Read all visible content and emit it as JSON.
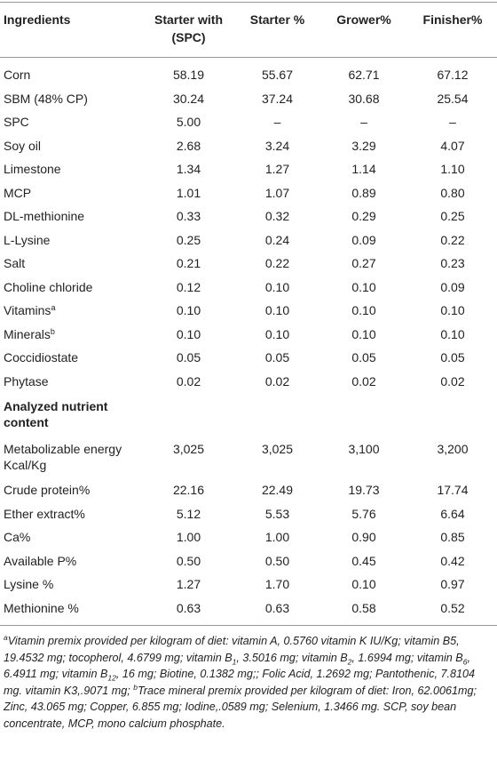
{
  "table": {
    "header": [
      "Ingredients",
      "Starter with (SPC)",
      "Starter %",
      "Grower%",
      "Finisher%"
    ],
    "rows": [
      {
        "cells": [
          "Corn",
          "58.19",
          "55.67",
          "62.71",
          "67.12"
        ]
      },
      {
        "cells": [
          "SBM (48% CP)",
          "30.24",
          "37.24",
          "30.68",
          "25.54"
        ]
      },
      {
        "cells": [
          "SPC",
          "5.00",
          "–",
          "–",
          "–"
        ]
      },
      {
        "cells": [
          "Soy oil",
          "2.68",
          "3.24",
          "3.29",
          "4.07"
        ]
      },
      {
        "cells": [
          "Limestone",
          "1.34",
          "1.27",
          "1.14",
          "1.10"
        ]
      },
      {
        "cells": [
          "MCP",
          "1.01",
          "1.07",
          "0.89",
          "0.80"
        ]
      },
      {
        "cells": [
          "DL-methionine",
          "0.33",
          "0.32",
          "0.29",
          "0.25"
        ]
      },
      {
        "cells": [
          "L-Lysine",
          "0.25",
          "0.24",
          "0.09",
          "0.22"
        ]
      },
      {
        "cells": [
          "Salt",
          "0.21",
          "0.22",
          "0.27",
          "0.23"
        ]
      },
      {
        "cells": [
          "Choline chloride",
          "0.12",
          "0.10",
          "0.10",
          "0.09"
        ]
      },
      {
        "cells": [
          "Vitamins",
          "0.10",
          "0.10",
          "0.10",
          "0.10"
        ],
        "note": "a"
      },
      {
        "cells": [
          "Minerals",
          "0.10",
          "0.10",
          "0.10",
          "0.10"
        ],
        "note": "b"
      },
      {
        "cells": [
          "Coccidiostate",
          "0.05",
          "0.05",
          "0.05",
          "0.05"
        ]
      },
      {
        "cells": [
          "Phytase",
          "0.02",
          "0.02",
          "0.02",
          "0.02"
        ]
      }
    ],
    "section": "Analyzed nutrient content",
    "section_rows": [
      [
        "Metabolizable energy Kcal/Kg",
        "3,025",
        "3,025",
        "3,100",
        "3,200"
      ],
      [
        "Crude protein%",
        "22.16",
        "22.49",
        "19.73",
        "17.74"
      ],
      [
        "Ether extract%",
        "5.12",
        "5.53",
        "5.76",
        "6.64"
      ],
      [
        "Ca%",
        "1.00",
        "1.00",
        "0.90",
        "0.85"
      ],
      [
        "Available P%",
        "0.50",
        "0.50",
        "0.45",
        "0.42"
      ],
      [
        "Lysine %",
        "1.27",
        "1.70",
        "0.10",
        "0.97"
      ],
      [
        "Methionine %",
        "0.63",
        "0.63",
        "0.58",
        "0.52"
      ]
    ]
  },
  "footnote": [
    "a",
    "Vitamin premix provided per kilogram of diet: vitamin A, 0.5760 vitamin K IU/Kg; vitamin B5, 19.4532 mg; tocopherol, 4.6799 mg; vitamin B",
    "1",
    ", 3.5016 mg; vitamin B",
    "2",
    ", 1.6994 mg; vitamin B",
    "6",
    ", 6.4911 mg; vitamin B",
    "12",
    ", 16 mg; Biotine, 0.1382 mg;; Folic Acid, 1.2692 mg; Pantothenic, 7.8104 mg. vitamin K3,.9071 mg; ",
    "b",
    "Trace mineral premix provided per kilogram of diet: Iron, 62.0061mg; Zinc, 43.065 mg; Copper, 6.855 mg; Iodine,.0589 mg; Selenium, 1.3466 mg. SCP, soy bean concentrate, MCP, mono calcium phosphate."
  ]
}
